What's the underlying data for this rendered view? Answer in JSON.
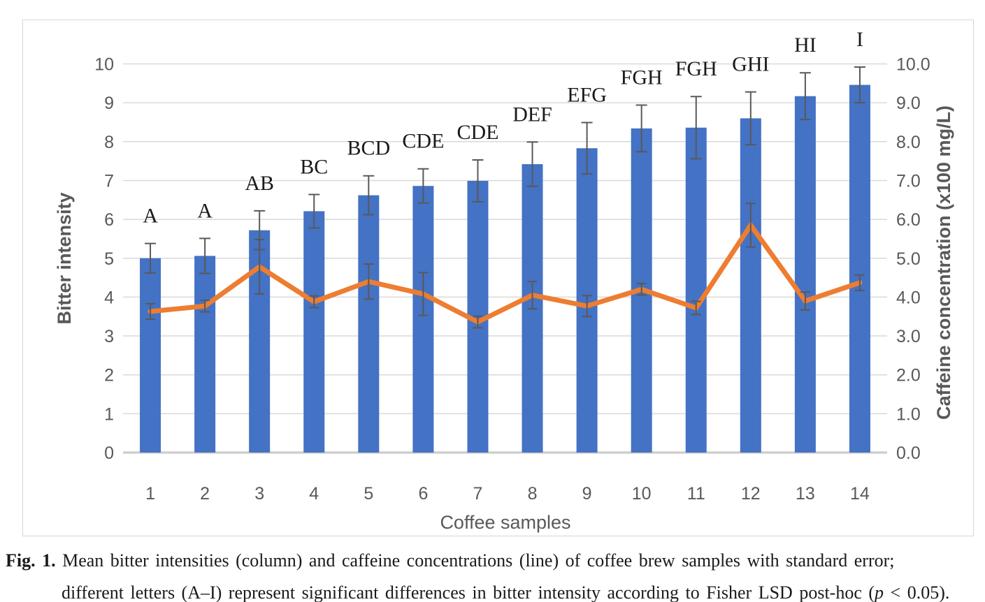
{
  "figure": {
    "caption": {
      "fig_label": "Fig. 1.",
      "line1": " Mean bitter intensities (column) and caffeine concentrations (line) of coffee brew samples with standard error;",
      "line2_prefix": "different letters (A–I) represent significant differences in bitter intensity according to Fisher LSD post-hoc (",
      "line2_italic": "p",
      "line2_suffix": " < 0.05)."
    }
  },
  "chart_data": {
    "type": "combo",
    "title": "",
    "xlabel": "Coffee samples",
    "ylabel_left": "Bitter intensity",
    "ylabel_right": "Caffeine concentration (x100 mg/L)",
    "categories": [
      "1",
      "2",
      "3",
      "4",
      "5",
      "6",
      "7",
      "8",
      "9",
      "10",
      "11",
      "12",
      "13",
      "14"
    ],
    "series": [
      {
        "name": "Bitter intensity",
        "type": "bar",
        "axis": "left",
        "color": "#4472C4",
        "values": [
          5.0,
          5.06,
          5.72,
          6.21,
          6.62,
          6.86,
          6.99,
          7.42,
          7.83,
          8.34,
          8.36,
          8.6,
          9.17,
          9.46
        ],
        "errors": [
          0.38,
          0.45,
          0.5,
          0.43,
          0.5,
          0.44,
          0.54,
          0.57,
          0.66,
          0.6,
          0.8,
          0.68,
          0.6,
          0.46
        ],
        "significance_letters": [
          "A",
          "A",
          "AB",
          "BC",
          "BCD",
          "CDE",
          "CDE",
          "DEF",
          "EFG",
          "FGH",
          "FGH",
          "GHI",
          "HI",
          "I"
        ]
      },
      {
        "name": "Caffeine concentration",
        "type": "line",
        "axis": "right",
        "color": "#ED7D31",
        "values": [
          3.63,
          3.77,
          4.78,
          3.88,
          4.4,
          4.08,
          3.36,
          4.05,
          3.77,
          4.2,
          3.72,
          5.85,
          3.9,
          4.37
        ],
        "errors": [
          0.2,
          0.15,
          0.7,
          0.15,
          0.45,
          0.55,
          0.15,
          0.35,
          0.27,
          0.15,
          0.17,
          0.56,
          0.23,
          0.2
        ]
      }
    ],
    "ylim_left": [
      0,
      10
    ],
    "ylim_right": [
      0,
      10
    ],
    "y_left_ticks": [
      "0",
      "1",
      "2",
      "3",
      "4",
      "5",
      "6",
      "7",
      "8",
      "9",
      "10"
    ],
    "y_right_ticks": [
      "0.0",
      "1.0",
      "2.0",
      "3.0",
      "4.0",
      "5.0",
      "6.0",
      "7.0",
      "8.0",
      "9.0",
      "10.0"
    ],
    "x_ticks": [
      "1",
      "2",
      "3",
      "4",
      "5",
      "6",
      "7",
      "8",
      "9",
      "10",
      "11",
      "12",
      "13",
      "14"
    ],
    "grid": true,
    "legend": "none",
    "colors": {
      "bar": "#4472C4",
      "line": "#ED7D31",
      "error_bar": "#595959",
      "gridline": "#D9D9D9",
      "baseline": "#CFCFCF",
      "tick_text": "#595959",
      "letter_text": "#1a1a1a"
    }
  }
}
